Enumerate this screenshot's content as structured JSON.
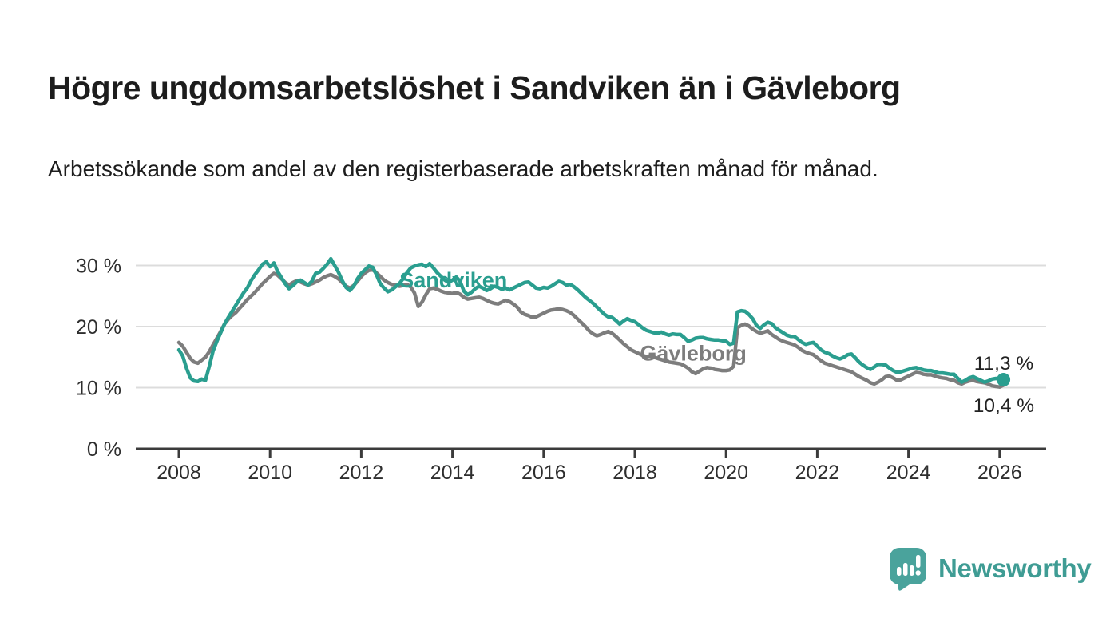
{
  "header": {
    "title": "Högre ungdomsarbetslöshet i Sandviken än i Gävleborg",
    "subtitle": "Arbetssökande som andel av den registerbaserade arbetskraften månad för månad."
  },
  "chart_data": {
    "type": "line",
    "x_start_year": 2008.0,
    "x_step_years": 0.0833333,
    "x_tick_years": [
      2008,
      2010,
      2012,
      2014,
      2016,
      2018,
      2020,
      2022,
      2024,
      2026
    ],
    "y_ticks": [
      0,
      10,
      20,
      30
    ],
    "y_tick_suffix": " %",
    "ylim": [
      0,
      34.5
    ],
    "grid": "horizontal",
    "legend_position": "inline-labels",
    "colors": {
      "sandviken": "#2a9e8f",
      "gavleborg": "#7d7d7d",
      "grid": "#dcdcdc",
      "axis": "#3b3b3b",
      "tick_text": "#2e2e2e",
      "annotation_text": "#222222"
    },
    "series": [
      {
        "name": "Gävleborg",
        "color": "#7d7d7d",
        "end_dot": false,
        "end_value_label": "10,4 %",
        "values": [
          17.4,
          16.8,
          15.8,
          14.8,
          14.2,
          14.0,
          14.5,
          15.0,
          15.9,
          17.0,
          18.1,
          19.2,
          20.4,
          21.2,
          21.8,
          22.3,
          23.0,
          23.7,
          24.4,
          25.0,
          25.6,
          26.3,
          27.0,
          27.6,
          28.2,
          28.7,
          28.4,
          27.8,
          27.2,
          26.8,
          27.2,
          27.5,
          27.3,
          27.0,
          26.8,
          27.0,
          27.3,
          27.6,
          28.0,
          28.3,
          28.5,
          28.2,
          27.8,
          27.2,
          26.6,
          26.3,
          26.7,
          27.4,
          28.2,
          28.8,
          29.2,
          29.3,
          28.8,
          28.2,
          27.6,
          27.2,
          26.9,
          26.8,
          26.6,
          26.7,
          26.9,
          26.5,
          25.5,
          23.3,
          24.0,
          25.2,
          26.2,
          26.3,
          26.1,
          25.8,
          25.6,
          25.5,
          25.4,
          25.6,
          25.3,
          24.8,
          24.5,
          24.6,
          24.7,
          24.8,
          24.6,
          24.3,
          24.0,
          23.8,
          23.7,
          24.0,
          24.3,
          24.1,
          23.7,
          23.2,
          22.4,
          22.0,
          21.8,
          21.5,
          21.6,
          21.9,
          22.2,
          22.5,
          22.7,
          22.8,
          22.9,
          22.8,
          22.6,
          22.3,
          21.8,
          21.2,
          20.6,
          20.0,
          19.3,
          18.8,
          18.5,
          18.7,
          19.0,
          19.2,
          18.9,
          18.4,
          17.8,
          17.2,
          16.7,
          16.2,
          15.9,
          15.6,
          15.3,
          15.1,
          15.2,
          15.0,
          14.8,
          14.6,
          14.4,
          14.2,
          14.1,
          14.0,
          13.9,
          13.6,
          13.2,
          12.6,
          12.3,
          12.7,
          13.1,
          13.3,
          13.2,
          13.0,
          12.9,
          12.8,
          12.8,
          12.9,
          13.5,
          19.8,
          20.2,
          20.4,
          20.1,
          19.6,
          19.2,
          18.9,
          19.1,
          19.3,
          18.7,
          18.3,
          17.9,
          17.6,
          17.4,
          17.2,
          17.0,
          16.6,
          16.1,
          15.8,
          15.6,
          15.4,
          14.9,
          14.4,
          14.0,
          13.8,
          13.6,
          13.4,
          13.2,
          13.0,
          12.8,
          12.6,
          12.2,
          11.8,
          11.5,
          11.2,
          10.8,
          10.6,
          10.9,
          11.3,
          11.8,
          11.9,
          11.6,
          11.2,
          11.3,
          11.6,
          11.9,
          12.2,
          12.5,
          12.4,
          12.2,
          12.1,
          12.1,
          11.9,
          11.7,
          11.6,
          11.5,
          11.3,
          11.2,
          10.8,
          10.6,
          10.9,
          11.1,
          11.2,
          11.0,
          10.9,
          10.8,
          10.6,
          10.3,
          10.2,
          10.1,
          10.4
        ]
      },
      {
        "name": "Sandviken",
        "color": "#2a9e8f",
        "end_dot": true,
        "end_value_label": "11,3 %",
        "values": [
          16.2,
          15.2,
          13.2,
          11.6,
          11.1,
          11.0,
          11.4,
          11.2,
          13.5,
          16.0,
          17.6,
          19.0,
          20.4,
          21.5,
          22.5,
          23.5,
          24.5,
          25.5,
          26.3,
          27.5,
          28.5,
          29.3,
          30.2,
          30.6,
          29.8,
          30.4,
          29.0,
          28.0,
          27.0,
          26.2,
          26.7,
          27.3,
          27.6,
          27.2,
          26.8,
          27.4,
          28.7,
          28.9,
          29.5,
          30.2,
          31.1,
          30.0,
          28.9,
          27.5,
          26.4,
          25.9,
          26.6,
          27.8,
          28.7,
          29.3,
          29.9,
          29.7,
          28.5,
          27.0,
          26.3,
          25.7,
          26.0,
          26.5,
          27.0,
          27.8,
          28.8,
          29.6,
          29.9,
          30.1,
          30.2,
          29.8,
          30.3,
          29.6,
          28.8,
          28.2,
          27.6,
          27.2,
          27.6,
          28.1,
          27.4,
          25.8,
          25.2,
          25.6,
          26.2,
          26.6,
          26.3,
          25.9,
          26.2,
          26.6,
          26.4,
          26.1,
          26.3,
          26.0,
          26.3,
          26.6,
          26.9,
          27.2,
          27.3,
          26.8,
          26.3,
          26.2,
          26.4,
          26.3,
          26.6,
          27.0,
          27.4,
          27.2,
          26.8,
          26.9,
          26.5,
          26.0,
          25.4,
          24.8,
          24.3,
          23.8,
          23.2,
          22.6,
          22.0,
          21.6,
          21.5,
          21.0,
          20.4,
          20.9,
          21.3,
          21.0,
          20.8,
          20.3,
          19.8,
          19.4,
          19.2,
          19.0,
          18.9,
          19.1,
          18.8,
          18.6,
          18.8,
          18.7,
          18.7,
          18.2,
          17.6,
          17.8,
          18.1,
          18.2,
          18.2,
          18.0,
          17.9,
          17.8,
          17.8,
          17.7,
          17.6,
          17.1,
          17.3,
          22.4,
          22.6,
          22.5,
          22.0,
          21.3,
          20.2,
          19.7,
          20.3,
          20.7,
          20.5,
          19.8,
          19.4,
          19.0,
          18.6,
          18.4,
          18.4,
          17.9,
          17.4,
          17.1,
          17.3,
          17.4,
          16.8,
          16.2,
          15.8,
          15.6,
          15.2,
          14.9,
          14.7,
          15.0,
          15.4,
          15.5,
          14.9,
          14.2,
          13.7,
          13.3,
          13.0,
          13.4,
          13.8,
          13.8,
          13.7,
          13.2,
          12.8,
          12.5,
          12.6,
          12.8,
          13.0,
          13.2,
          13.3,
          13.1,
          12.9,
          12.8,
          12.8,
          12.6,
          12.4,
          12.4,
          12.3,
          12.2,
          12.2,
          11.5,
          10.9,
          11.2,
          11.6,
          11.8,
          11.5,
          11.2,
          10.9,
          11.1,
          11.4,
          11.5,
          11.4,
          11.3
        ]
      }
    ],
    "series_labels": [
      {
        "text": "Sandviken",
        "year": 2014.02,
        "value": 27.6,
        "color": "#2a9e8f"
      },
      {
        "text": "Gävleborg",
        "year": 2019.28,
        "value": 15.6,
        "color": "#7d7d7d"
      }
    ],
    "end_labels": [
      {
        "text": "11,3 %",
        "year": 2026.09,
        "value": 11.3,
        "offset_y": -20,
        "color": "#222222"
      },
      {
        "text": "10,4 %",
        "year": 2026.09,
        "value": 10.4,
        "offset_y": 26,
        "color": "#222222"
      }
    ]
  },
  "footer": {
    "brand": "Newsworthy",
    "brand_color": "#3f9c94",
    "logo_color": "#4aa39c",
    "logo_icon": "speech-bubble-bar-chart-icon"
  }
}
